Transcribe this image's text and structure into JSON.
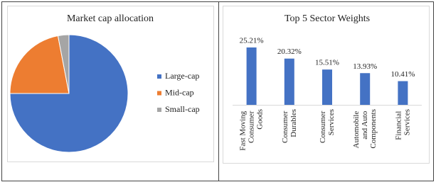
{
  "chart_data": [
    {
      "type": "pie",
      "title": "Market cap allocation",
      "categories": [
        "Large-cap",
        "Mid-cap",
        "Small-cap"
      ],
      "values": [
        75,
        22,
        3
      ],
      "colors": [
        "#4472c4",
        "#ed7d31",
        "#a5a5a5"
      ],
      "legend": "right"
    },
    {
      "type": "bar",
      "title": "Top 5 Sector Weights",
      "categories": [
        "Fast Moving Consumer Goods",
        "Consumer Durables",
        "Consumer Services",
        "Automobile and Auto Components",
        "Financial Services"
      ],
      "values": [
        25.21,
        20.32,
        15.51,
        13.93,
        10.41
      ],
      "value_labels": [
        "25.21%",
        "20.32%",
        "15.51%",
        "13.93%",
        "10.41%"
      ],
      "color": "#4472c4"
    }
  ]
}
